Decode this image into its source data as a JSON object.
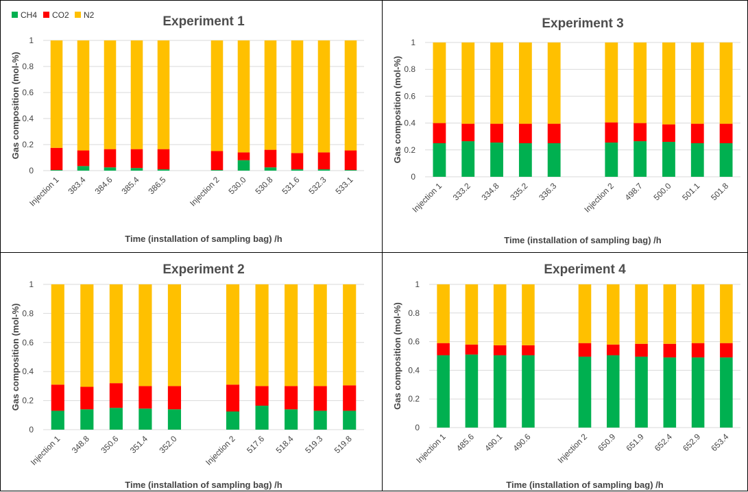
{
  "legend": {
    "entries": [
      {
        "name": "CH4",
        "color": "#00b050"
      },
      {
        "name": "CO2",
        "color": "#ff0000"
      },
      {
        "name": "N2",
        "color": "#ffc000"
      }
    ]
  },
  "chart_data": [
    {
      "type": "bar",
      "stacked": true,
      "title": "Experiment 1",
      "xlabel": "Time (installation of sampling bag) /h",
      "ylabel": "Gas composition (mol-%)",
      "ylim": [
        0,
        1
      ],
      "yticks": [
        "0",
        "0.2",
        "0.4",
        "0.6",
        "0.8",
        "1"
      ],
      "categories": [
        "Injection 1",
        "383.4",
        "384.6",
        "385.4",
        "386.5",
        "",
        "Injection 2",
        "530.0",
        "530.8",
        "531.6",
        "532.3",
        "533.1"
      ],
      "series": [
        {
          "name": "CH4",
          "color": "#00b050",
          "values": [
            0.005,
            0.035,
            0.025,
            0.02,
            0.01,
            null,
            0.005,
            0.08,
            0.025,
            0.01,
            0.01,
            0.005
          ]
        },
        {
          "name": "CO2",
          "color": "#ff0000",
          "values": [
            0.17,
            0.12,
            0.14,
            0.145,
            0.155,
            null,
            0.145,
            0.06,
            0.135,
            0.125,
            0.13,
            0.15
          ]
        },
        {
          "name": "N2",
          "color": "#ffc000",
          "values": [
            0.825,
            0.845,
            0.835,
            0.835,
            0.835,
            null,
            0.85,
            0.86,
            0.84,
            0.865,
            0.86,
            0.845
          ]
        }
      ]
    },
    {
      "type": "bar",
      "stacked": true,
      "title": "Experiment 3",
      "xlabel": "Time (installation of sampling bag) /h",
      "ylabel": "Gas composition (mol-%)",
      "ylim": [
        0,
        1
      ],
      "yticks": [
        "0",
        "0.2",
        "0.4",
        "0.6",
        "0.8",
        "1"
      ],
      "categories": [
        "Injection 1",
        "333.2",
        "334.8",
        "335.2",
        "336.3",
        "",
        "Injection 2",
        "498.7",
        "500.0",
        "501.1",
        "501.8"
      ],
      "series": [
        {
          "name": "CH4",
          "color": "#00b050",
          "values": [
            0.25,
            0.265,
            0.255,
            0.25,
            0.25,
            null,
            0.255,
            0.265,
            0.26,
            0.25,
            0.25
          ]
        },
        {
          "name": "CO2",
          "color": "#ff0000",
          "values": [
            0.15,
            0.13,
            0.14,
            0.145,
            0.145,
            null,
            0.15,
            0.135,
            0.13,
            0.145,
            0.145
          ]
        },
        {
          "name": "N2",
          "color": "#ffc000",
          "values": [
            0.6,
            0.605,
            0.605,
            0.605,
            0.605,
            null,
            0.595,
            0.6,
            0.61,
            0.605,
            0.605
          ]
        }
      ]
    },
    {
      "type": "bar",
      "stacked": true,
      "title": "Experiment 2",
      "xlabel": "Time (installation of sampling bag) /h",
      "ylabel": "Gas composition (mol-%)",
      "ylim": [
        0,
        1
      ],
      "yticks": [
        "0",
        "0.2",
        "0.4",
        "0.6",
        "0.8",
        "1"
      ],
      "categories": [
        "Injection 1",
        "348.8",
        "350.6",
        "351.4",
        "352.0",
        "",
        "Injection 2",
        "517.6",
        "518.4",
        "519.3",
        "519.8"
      ],
      "series": [
        {
          "name": "CH4",
          "color": "#00b050",
          "values": [
            0.13,
            0.14,
            0.15,
            0.145,
            0.14,
            null,
            0.125,
            0.165,
            0.14,
            0.13,
            0.13
          ]
        },
        {
          "name": "CO2",
          "color": "#ff0000",
          "values": [
            0.18,
            0.155,
            0.17,
            0.155,
            0.16,
            null,
            0.185,
            0.135,
            0.16,
            0.17,
            0.175
          ]
        },
        {
          "name": "N2",
          "color": "#ffc000",
          "values": [
            0.69,
            0.705,
            0.68,
            0.7,
            0.7,
            null,
            0.69,
            0.7,
            0.7,
            0.7,
            0.695
          ]
        }
      ]
    },
    {
      "type": "bar",
      "stacked": true,
      "title": "Experiment 4",
      "xlabel": "Time (installation of sampling bag) /h",
      "ylabel": "Gas composition (mol-%)",
      "ylim": [
        0,
        1
      ],
      "yticks": [
        "0",
        "0.2",
        "0.4",
        "0.6",
        "0.8",
        "1"
      ],
      "categories": [
        "Injection 1",
        "485.6",
        "490.1",
        "490.6",
        "",
        "Injection 2",
        "650.9",
        "651.9",
        "652.4",
        "652.9",
        "653.4"
      ],
      "series": [
        {
          "name": "CH4",
          "color": "#00b050",
          "values": [
            0.505,
            0.51,
            0.505,
            0.505,
            null,
            0.495,
            0.505,
            0.495,
            0.49,
            0.49,
            0.49
          ]
        },
        {
          "name": "CO2",
          "color": "#ff0000",
          "values": [
            0.085,
            0.07,
            0.07,
            0.07,
            null,
            0.095,
            0.075,
            0.09,
            0.095,
            0.1,
            0.1
          ]
        },
        {
          "name": "N2",
          "color": "#ffc000",
          "values": [
            0.41,
            0.42,
            0.425,
            0.425,
            null,
            0.41,
            0.42,
            0.415,
            0.415,
            0.41,
            0.41
          ]
        }
      ]
    }
  ]
}
